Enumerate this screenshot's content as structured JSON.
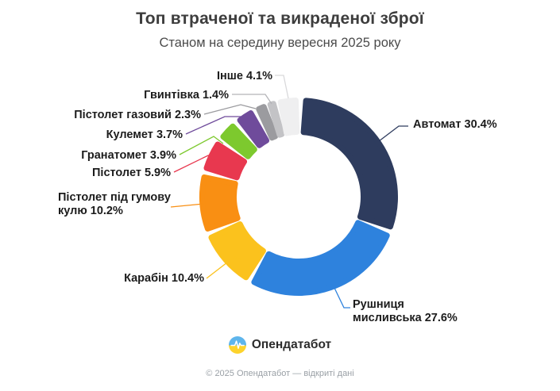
{
  "header": {
    "title": "Топ втраченої та викраденої зброї",
    "subtitle": "Станом на середину вересня 2025 року"
  },
  "chart_data": {
    "type": "pie",
    "variant": "donut",
    "title": "Топ втраченої та викраденої зброї",
    "subtitle": "Станом на середину вересня 2025 року",
    "unit": "%",
    "start_angle_deg": 1.5,
    "legend_position": "callout-labels",
    "slices": [
      {
        "name": "Автомат",
        "value": 30.4,
        "display": "Автомат 30.4%",
        "color": "#2e3c5e"
      },
      {
        "name": "Рушниця мисливська",
        "value": 27.6,
        "display": "Рушниця мисливська 27.6%",
        "color": "#2e82dd"
      },
      {
        "name": "Карабін",
        "value": 10.4,
        "display": "Карабін 10.4%",
        "color": "#fbc21d"
      },
      {
        "name": "Пістолет під гумову кулю",
        "value": 10.2,
        "display": "Пістолет під гумову кулю 10.2%",
        "color": "#f98f13"
      },
      {
        "name": "Пістолет",
        "value": 5.9,
        "display": "Пістолет 5.9%",
        "color": "#e8384f"
      },
      {
        "name": "Гранатомет",
        "value": 3.9,
        "display": "Гранатомет 3.9%",
        "color": "#7dc92e"
      },
      {
        "name": "Кулемет",
        "value": 3.7,
        "display": "Кулемет 3.7%",
        "color": "#6f4b9b"
      },
      {
        "name": "Пістолет газовий",
        "value": 2.3,
        "display": "Пістолет газовий 2.3%",
        "color": "#9b9b9f"
      },
      {
        "name": "Гвинтівка",
        "value": 1.4,
        "display": "Гвинтівка 1.4%",
        "color": "#c3c3c6"
      },
      {
        "name": "Інше",
        "value": 4.1,
        "display": "Інше 4.1%",
        "color": "#efeff0"
      }
    ]
  },
  "footer": {
    "brand": "Опендатабот",
    "copyright": "© 2025 Опендатабот — відкриті дані",
    "logo": {
      "blue": "#5eb5ec",
      "yellow": "#fdd32c",
      "pulse": "#ffffff"
    }
  }
}
